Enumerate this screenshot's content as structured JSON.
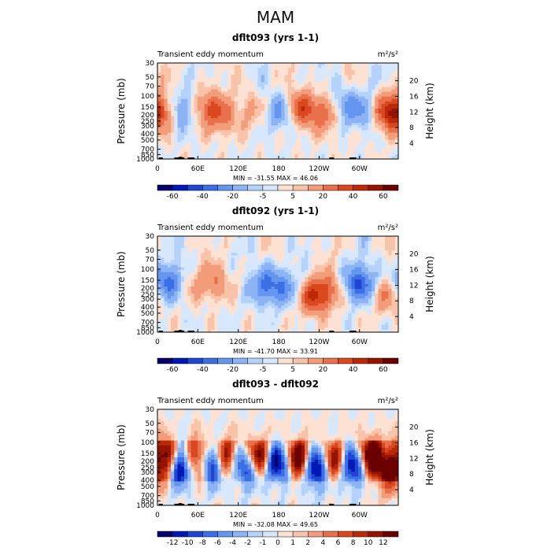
{
  "title": "MAM",
  "chart_data": [
    {
      "type": "heatmap",
      "title": "dflt093 (yrs 1-1)",
      "left_label": "Transient eddy momentum",
      "units": "m²/s²",
      "xlabel": "",
      "ylabel": "Pressure (mb)",
      "y2label": "Height (km)",
      "x_ticks": [
        "0",
        "60E",
        "120E",
        "180",
        "120W",
        "60W"
      ],
      "x_tick_lon": [
        0,
        60,
        120,
        180,
        240,
        300
      ],
      "xlim": [
        0,
        357.5
      ],
      "y_ticks": [
        30,
        50,
        70,
        100,
        150,
        200,
        250,
        300,
        400,
        500,
        700,
        850,
        1000
      ],
      "ylim": [
        1000,
        30
      ],
      "y2_ticks": [
        4,
        8,
        12,
        16,
        20
      ],
      "stats": "MIN = -31.55   MAX =  46.06",
      "min": -31.55,
      "max": 46.06,
      "colorbar_ticks": [
        "-60",
        "-40",
        "-20",
        "-5",
        "5",
        "20",
        "40",
        "60"
      ],
      "levels": [
        -70,
        -60,
        -50,
        -40,
        -30,
        -20,
        -10,
        -5,
        0,
        5,
        10,
        20,
        30,
        40,
        50,
        60,
        70
      ],
      "features": [
        {
          "lon": 10,
          "p": 180,
          "value": 30
        },
        {
          "lon": 32,
          "p": 170,
          "value": -28
        },
        {
          "lon": 75,
          "p": 150,
          "value": 25
        },
        {
          "lon": 95,
          "p": 220,
          "value": 20
        },
        {
          "lon": 140,
          "p": 170,
          "value": 12
        },
        {
          "lon": 183,
          "p": 180,
          "value": -25
        },
        {
          "lon": 213,
          "p": 160,
          "value": 35
        },
        {
          "lon": 250,
          "p": 190,
          "value": 28
        },
        {
          "lon": 275,
          "p": 150,
          "value": -22
        },
        {
          "lon": 305,
          "p": 170,
          "value": -18
        },
        {
          "lon": 345,
          "p": 180,
          "value": 46
        }
      ]
    },
    {
      "type": "heatmap",
      "title": "dflt092 (yrs 1-1)",
      "left_label": "Transient eddy momentum",
      "units": "m²/s²",
      "xlabel": "",
      "ylabel": "Pressure (mb)",
      "y2label": "Height (km)",
      "x_ticks": [
        "0",
        "60E",
        "120E",
        "180",
        "120W",
        "60W"
      ],
      "x_tick_lon": [
        0,
        60,
        120,
        180,
        240,
        300
      ],
      "xlim": [
        0,
        357.5
      ],
      "y_ticks": [
        30,
        50,
        70,
        100,
        150,
        200,
        250,
        300,
        400,
        500,
        700,
        850,
        1000
      ],
      "ylim": [
        1000,
        30
      ],
      "y2_ticks": [
        4,
        8,
        12,
        16,
        20
      ],
      "stats": "MIN = -41.70   MAX =  33.91",
      "min": -41.7,
      "max": 33.91,
      "colorbar_ticks": [
        "-60",
        "-40",
        "-20",
        "-5",
        "5",
        "20",
        "40",
        "60"
      ],
      "levels": [
        -70,
        -60,
        -50,
        -40,
        -30,
        -20,
        -10,
        -5,
        0,
        5,
        10,
        20,
        30,
        40,
        50,
        60,
        70
      ],
      "features": [
        {
          "lon": 15,
          "p": 160,
          "value": -35
        },
        {
          "lon": 55,
          "p": 170,
          "value": 10
        },
        {
          "lon": 85,
          "p": 160,
          "value": 18
        },
        {
          "lon": 160,
          "p": 180,
          "value": -30
        },
        {
          "lon": 190,
          "p": 200,
          "value": -22
        },
        {
          "lon": 230,
          "p": 280,
          "value": 30
        },
        {
          "lon": 250,
          "p": 220,
          "value": 26
        },
        {
          "lon": 300,
          "p": 170,
          "value": -42
        },
        {
          "lon": 340,
          "p": 260,
          "value": 20
        }
      ]
    },
    {
      "type": "heatmap",
      "title": "dflt093 - dflt092",
      "left_label": "Transient eddy momentum",
      "units": "m²/s²",
      "xlabel": "",
      "ylabel": "Pressure (mb)",
      "y2label": "Height (km)",
      "x_ticks": [
        "0",
        "60E",
        "120E",
        "180",
        "120W",
        "60W"
      ],
      "x_tick_lon": [
        0,
        60,
        120,
        180,
        240,
        300
      ],
      "xlim": [
        0,
        357.5
      ],
      "y_ticks": [
        30,
        50,
        70,
        100,
        150,
        200,
        250,
        300,
        400,
        500,
        700,
        850,
        1000
      ],
      "ylim": [
        1000,
        30
      ],
      "y2_ticks": [
        4,
        8,
        12,
        16,
        20
      ],
      "stats": "MIN = -32.08   MAX =  49.65",
      "min": -32.08,
      "max": 49.65,
      "colorbar_ticks": [
        "-12",
        "-10",
        "-8",
        "-6",
        "-4",
        "-2",
        "-1",
        "0",
        "1",
        "2",
        "4",
        "6",
        "8",
        "10",
        "12"
      ],
      "levels": [
        -14,
        -12,
        -10,
        -8,
        -6,
        -4,
        -2,
        -1,
        0,
        1,
        2,
        4,
        6,
        8,
        10,
        12,
        14
      ],
      "features": [
        {
          "lon": 12,
          "p": 160,
          "value": 16
        },
        {
          "lon": 35,
          "p": 230,
          "value": -16
        },
        {
          "lon": 58,
          "p": 170,
          "value": 15
        },
        {
          "lon": 80,
          "p": 220,
          "value": -14
        },
        {
          "lon": 102,
          "p": 160,
          "value": 12
        },
        {
          "lon": 130,
          "p": 250,
          "value": -12
        },
        {
          "lon": 150,
          "p": 160,
          "value": 14
        },
        {
          "lon": 178,
          "p": 220,
          "value": -14
        },
        {
          "lon": 210,
          "p": 180,
          "value": 16
        },
        {
          "lon": 235,
          "p": 270,
          "value": -16
        },
        {
          "lon": 262,
          "p": 200,
          "value": 12
        },
        {
          "lon": 290,
          "p": 250,
          "value": -14
        },
        {
          "lon": 318,
          "p": 160,
          "value": 18
        },
        {
          "lon": 345,
          "p": 300,
          "value": 14
        }
      ]
    }
  ],
  "colors": {
    "scale": [
      "#08006b",
      "#0019b4",
      "#1e46d2",
      "#3c6ee6",
      "#6496f0",
      "#8cb4f5",
      "#b4d2fa",
      "#d7e8fd",
      "#fde1d2",
      "#f9c3aa",
      "#f29c7a",
      "#e8704a",
      "#d9481f",
      "#bb2a08",
      "#951400",
      "#6b0000"
    ],
    "terrain": "#000000"
  }
}
